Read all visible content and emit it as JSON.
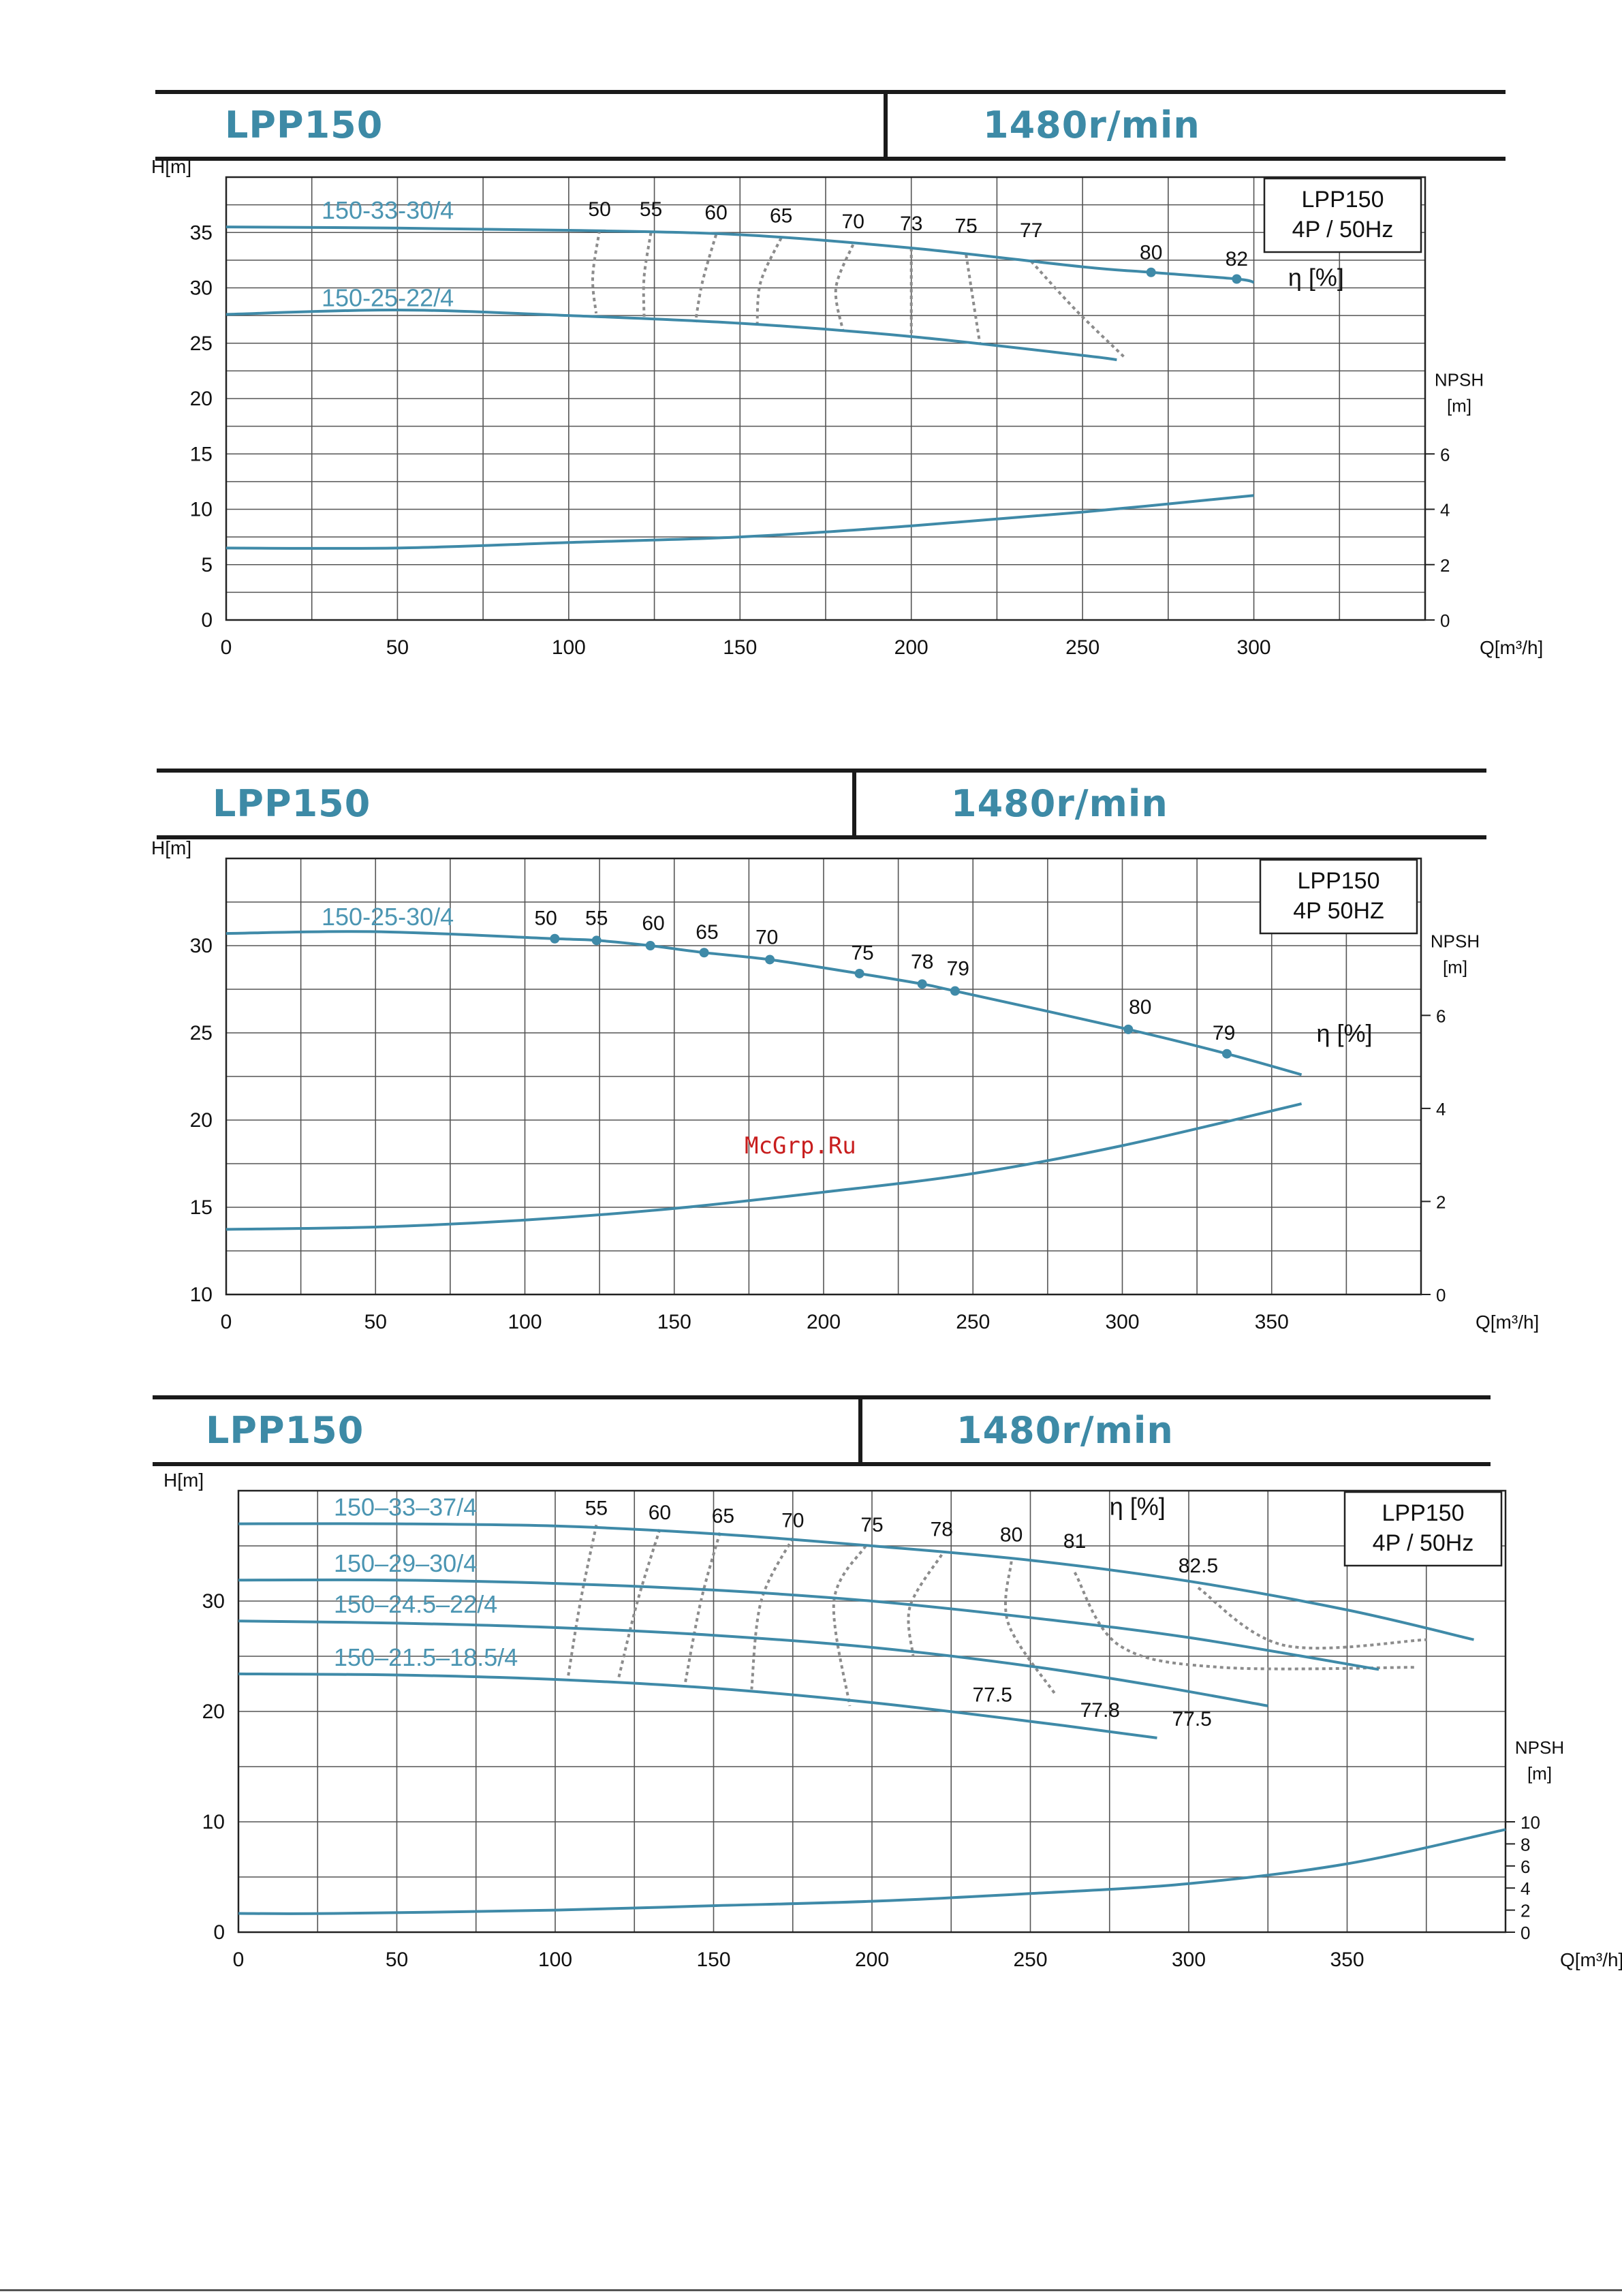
{
  "colors": {
    "curve": "#3f8aa8",
    "grid": "#555555",
    "label": "#4b95b2",
    "text": "#111111",
    "efficiency": "#8c8c8c",
    "watermark": "#c81e1e"
  },
  "watermark": "McGrp.Ru",
  "panels": [
    {
      "header": {
        "model": "LPP150",
        "speed": "1480r/min"
      },
      "chart_data": {
        "type": "line",
        "xlabel": "Q[m³/h]",
        "ylabel": "H[m]",
        "y2label_line1": "NPSH",
        "y2label_line2": "[m]",
        "eta_label": "η [%]",
        "legend_line1": "LPP150",
        "legend_line2": "4P / 50Hz",
        "xlim": [
          0,
          350
        ],
        "ylim": [
          0,
          40
        ],
        "x_ticks": [
          0,
          50,
          100,
          150,
          200,
          250,
          300
        ],
        "y_ticks": [
          0,
          5,
          10,
          15,
          20,
          25,
          30,
          35
        ],
        "y_tick_labels": [
          "0",
          "5",
          "10",
          "15",
          "20",
          "25",
          "30",
          "35"
        ],
        "y2_ticks": [
          0,
          2,
          4,
          6
        ],
        "y2_tick_labels": [
          "0",
          "2",
          "4",
          "6"
        ],
        "y2_scale": 2.5,
        "grid": true,
        "series": [
          {
            "name": "150-33-30/4",
            "x": [
              0,
              50,
              100,
              150,
              200,
              250,
              270,
              295,
              300
            ],
            "y": [
              35.5,
              35.4,
              35.2,
              34.8,
              33.6,
              31.9,
              31.4,
              30.8,
              30.5
            ]
          },
          {
            "name": "150-25-22/4",
            "x": [
              0,
              50,
              100,
              150,
              200,
              250,
              260
            ],
            "y": [
              27.6,
              28.0,
              27.5,
              26.8,
              25.6,
              23.9,
              23.5
            ]
          }
        ],
        "npsh": {
          "x": [
            0,
            50,
            100,
            150,
            200,
            250,
            300
          ],
          "y": [
            2.6,
            2.6,
            2.8,
            3.0,
            3.4,
            3.9,
            4.5
          ]
        },
        "efficiency_labels": [
          {
            "label": "50",
            "x": 109,
            "y": 36.5
          },
          {
            "label": "55",
            "x": 124,
            "y": 36.5
          },
          {
            "label": "60",
            "x": 143,
            "y": 36.2
          },
          {
            "label": "65",
            "x": 162,
            "y": 35.9
          },
          {
            "label": "70",
            "x": 183,
            "y": 35.4
          },
          {
            "label": "73",
            "x": 200,
            "y": 35.2
          },
          {
            "label": "75",
            "x": 216,
            "y": 35.0
          },
          {
            "label": "77",
            "x": 235,
            "y": 34.6
          },
          {
            "label": "80",
            "x": 270,
            "y": 32.6
          },
          {
            "label": "82",
            "x": 295,
            "y": 32.0
          }
        ],
        "efficiency_points": [
          {
            "x": 270,
            "y": 31.4
          },
          {
            "x": 295,
            "y": 30.8
          }
        ],
        "iso_efficiency": [
          [
            [
              109,
              35.2
            ],
            [
              107,
              31.0
            ],
            [
              108,
              27.7
            ]
          ],
          [
            [
              124,
              35.0
            ],
            [
              122,
              31.0
            ],
            [
              122,
              27.4
            ]
          ],
          [
            [
              143,
              34.8
            ],
            [
              139,
              30.5
            ],
            [
              137,
              26.9
            ]
          ],
          [
            [
              162,
              34.5
            ],
            [
              156,
              30.5
            ],
            [
              155,
              26.6
            ]
          ],
          [
            [
              183,
              33.9
            ],
            [
              178,
              30.0
            ],
            [
              180,
              26.2
            ]
          ],
          [
            [
              200,
              33.6
            ],
            [
              200,
              29.5
            ],
            [
              200,
              25.6
            ]
          ],
          [
            [
              216,
              33.0
            ],
            [
              218,
              29.0
            ],
            [
              220,
              25.0
            ]
          ],
          [
            [
              235,
              32.4
            ],
            [
              248,
              28.0
            ],
            [
              262,
              23.8
            ]
          ]
        ]
      }
    },
    {
      "header": {
        "model": "LPP150",
        "speed": "1480r/min"
      },
      "chart_data": {
        "type": "line",
        "xlabel": "Q[m³/h]",
        "ylabel": "H[m]",
        "y2label_line1": "NPSH",
        "y2label_line2": "[m]",
        "eta_label": "η [%]",
        "legend_line1": "LPP150",
        "legend_line2": "4P 50HZ",
        "xlim": [
          0,
          400
        ],
        "ylim": [
          10,
          35
        ],
        "x_ticks": [
          0,
          50,
          100,
          150,
          200,
          250,
          300,
          350
        ],
        "y_ticks": [
          10,
          15,
          20,
          25,
          30
        ],
        "y_tick_labels": [
          "10",
          "15",
          "20",
          "25",
          "30"
        ],
        "y2_ticks": [
          0,
          2,
          4,
          6
        ],
        "y2_tick_labels": [
          "0",
          "2",
          "4",
          "6"
        ],
        "y2_scale": 2.667,
        "grid": true,
        "series": [
          {
            "name": "150-25-30/4",
            "x": [
              0,
              50,
              110,
              124,
              142,
              160,
              182,
              212,
              233,
              244,
              302,
              335,
              360
            ],
            "y": [
              30.7,
              30.8,
              30.4,
              30.3,
              30.0,
              29.6,
              29.2,
              28.4,
              27.8,
              27.4,
              25.2,
              23.8,
              22.6
            ]
          }
        ],
        "npsh": {
          "x": [
            0,
            50,
            100,
            150,
            200,
            250,
            300,
            360
          ],
          "y": [
            1.4,
            1.45,
            1.6,
            1.85,
            2.2,
            2.6,
            3.2,
            4.1
          ]
        },
        "efficiency_labels": [
          {
            "label": "50",
            "x": 107,
            "y": 31.2
          },
          {
            "label": "55",
            "x": 124,
            "y": 31.2
          },
          {
            "label": "60",
            "x": 143,
            "y": 30.9
          },
          {
            "label": "65",
            "x": 161,
            "y": 30.4
          },
          {
            "label": "70",
            "x": 181,
            "y": 30.1
          },
          {
            "label": "75",
            "x": 213,
            "y": 29.2
          },
          {
            "label": "78",
            "x": 233,
            "y": 28.7
          },
          {
            "label": "79",
            "x": 245,
            "y": 28.3
          },
          {
            "label": "80",
            "x": 306,
            "y": 26.1
          },
          {
            "label": "79",
            "x": 334,
            "y": 24.6
          }
        ],
        "efficiency_points": [
          {
            "x": 110,
            "y": 30.4
          },
          {
            "x": 124,
            "y": 30.3
          },
          {
            "x": 142,
            "y": 30.0
          },
          {
            "x": 160,
            "y": 29.6
          },
          {
            "x": 182,
            "y": 29.2
          },
          {
            "x": 212,
            "y": 28.4
          },
          {
            "x": 233,
            "y": 27.8
          },
          {
            "x": 244,
            "y": 27.4
          },
          {
            "x": 302,
            "y": 25.2
          },
          {
            "x": 335,
            "y": 23.8
          }
        ],
        "iso_efficiency": []
      }
    },
    {
      "header": {
        "model": "LPP150",
        "speed": "1480r/min"
      },
      "chart_data": {
        "type": "line",
        "xlabel": "Q[m³/h]",
        "ylabel": "H[m]",
        "y2label_line1": "NPSH",
        "y2label_line2": "[m]",
        "eta_label": "η [%]",
        "legend_line1": "LPP150",
        "legend_line2": "4P / 50Hz",
        "xlim": [
          0,
          400
        ],
        "ylim": [
          0,
          40
        ],
        "x_ticks": [
          0,
          50,
          100,
          150,
          200,
          250,
          300,
          350
        ],
        "y_ticks": [
          0,
          10,
          20,
          30
        ],
        "y_tick_labels": [
          "0",
          "10",
          "20",
          "30"
        ],
        "y2_ticks": [
          0,
          2,
          4,
          6,
          8,
          10
        ],
        "y2_tick_labels": [
          "0",
          "2",
          "4",
          "6",
          "8",
          "10"
        ],
        "y2_scale": 1.0,
        "grid": true,
        "series": [
          {
            "name": "150–33–37/4",
            "x": [
              0,
              50,
              100,
              150,
              200,
              250,
              300,
              350,
              390
            ],
            "y": [
              37.0,
              37.0,
              36.8,
              36.1,
              35.0,
              33.7,
              31.8,
              29.2,
              26.5
            ]
          },
          {
            "name": "150–29–30/4",
            "x": [
              0,
              50,
              100,
              150,
              200,
              250,
              300,
              360
            ],
            "y": [
              31.9,
              31.9,
              31.6,
              31.0,
              30.0,
              28.5,
              26.7,
              23.8
            ]
          },
          {
            "name": "150–24.5–22/4",
            "x": [
              0,
              50,
              100,
              150,
              200,
              250,
              290,
              325
            ],
            "y": [
              28.2,
              28.0,
              27.6,
              26.9,
              25.8,
              24.1,
              22.3,
              20.5
            ]
          },
          {
            "name": "150–21.5–18.5/4",
            "x": [
              0,
              50,
              100,
              150,
              200,
              250,
              290
            ],
            "y": [
              23.4,
              23.3,
              22.9,
              22.1,
              20.8,
              19.1,
              17.6
            ]
          }
        ],
        "npsh": {
          "x": [
            0,
            30,
            100,
            150,
            200,
            250,
            300,
            350,
            400
          ],
          "y": [
            1.7,
            1.7,
            2.0,
            2.4,
            2.8,
            3.5,
            4.4,
            6.2,
            9.3
          ]
        },
        "efficiency_labels": [
          {
            "label": "55",
            "x": 113,
            "y": 37.8
          },
          {
            "label": "60",
            "x": 133,
            "y": 37.4
          },
          {
            "label": "65",
            "x": 153,
            "y": 37.1
          },
          {
            "label": "70",
            "x": 175,
            "y": 36.7
          },
          {
            "label": "75",
            "x": 200,
            "y": 36.3
          },
          {
            "label": "78",
            "x": 222,
            "y": 35.9
          },
          {
            "label": "80",
            "x": 244,
            "y": 35.4
          },
          {
            "label": "81",
            "x": 264,
            "y": 34.8
          },
          {
            "label": "82.5",
            "x": 303,
            "y": 32.6
          },
          {
            "label": "77.5",
            "x": 238,
            "y": 20.9
          },
          {
            "label": "77.8",
            "x": 272,
            "y": 19.5
          },
          {
            "label": "77.5",
            "x": 301,
            "y": 18.7
          }
        ],
        "iso_efficiency": [
          [
            [
              113,
              36.9
            ],
            [
              108,
              30.0
            ],
            [
              104,
              23.0
            ]
          ],
          [
            [
              133,
              36.5
            ],
            [
              126,
              30.0
            ],
            [
              120,
              23.0
            ]
          ],
          [
            [
              152,
              36.2
            ],
            [
              146,
              30.0
            ],
            [
              141,
              22.5
            ]
          ],
          [
            [
              175,
              35.7
            ],
            [
              165,
              30.0
            ],
            [
              162,
              22.0
            ]
          ],
          [
            [
              198,
              35.0
            ],
            [
              188,
              30.0
            ],
            [
              193,
              20.5
            ]
          ],
          [
            [
              222,
              34.2
            ],
            [
              212,
              29.5
            ],
            [
              213,
              25.0
            ]
          ],
          [
            [
              244,
              33.6
            ],
            [
              243,
              28.0
            ],
            [
              258,
              21.5
            ]
          ],
          [
            [
              264,
              32.6
            ],
            [
              278,
              26.0
            ],
            [
              310,
              24.0
            ],
            [
              372,
              24.0
            ]
          ],
          [
            [
              303,
              31.2
            ],
            [
              330,
              26.0
            ],
            [
              375,
              26.5
            ]
          ]
        ]
      }
    }
  ]
}
